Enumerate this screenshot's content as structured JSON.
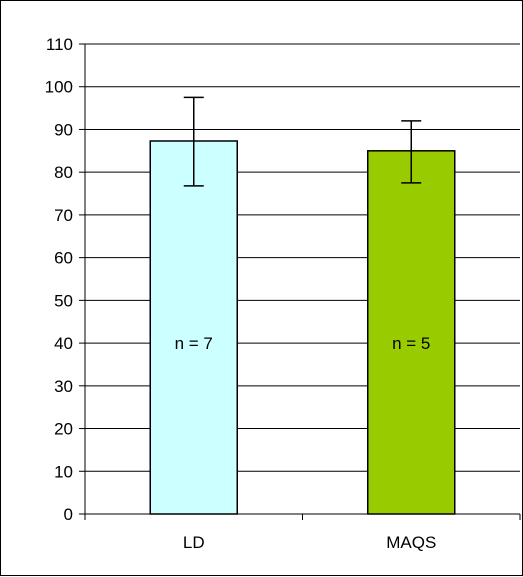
{
  "chart_data": {
    "type": "bar",
    "title": "",
    "xlabel": "",
    "ylabel": "",
    "categories": [
      "LD",
      "MAQS"
    ],
    "values": [
      87.3,
      85.0
    ],
    "error": [
      {
        "low": 76.8,
        "high": 97.5
      },
      {
        "low": 77.5,
        "high": 92.0
      }
    ],
    "bar_labels": [
      "n = 7",
      "n = 5"
    ],
    "bar_colors": [
      "#ccffff",
      "#99cc00"
    ],
    "ylim": [
      0,
      110
    ],
    "yticks": [
      0,
      10,
      20,
      30,
      40,
      50,
      60,
      70,
      80,
      90,
      100,
      110
    ],
    "grid": true,
    "legend": "none"
  }
}
